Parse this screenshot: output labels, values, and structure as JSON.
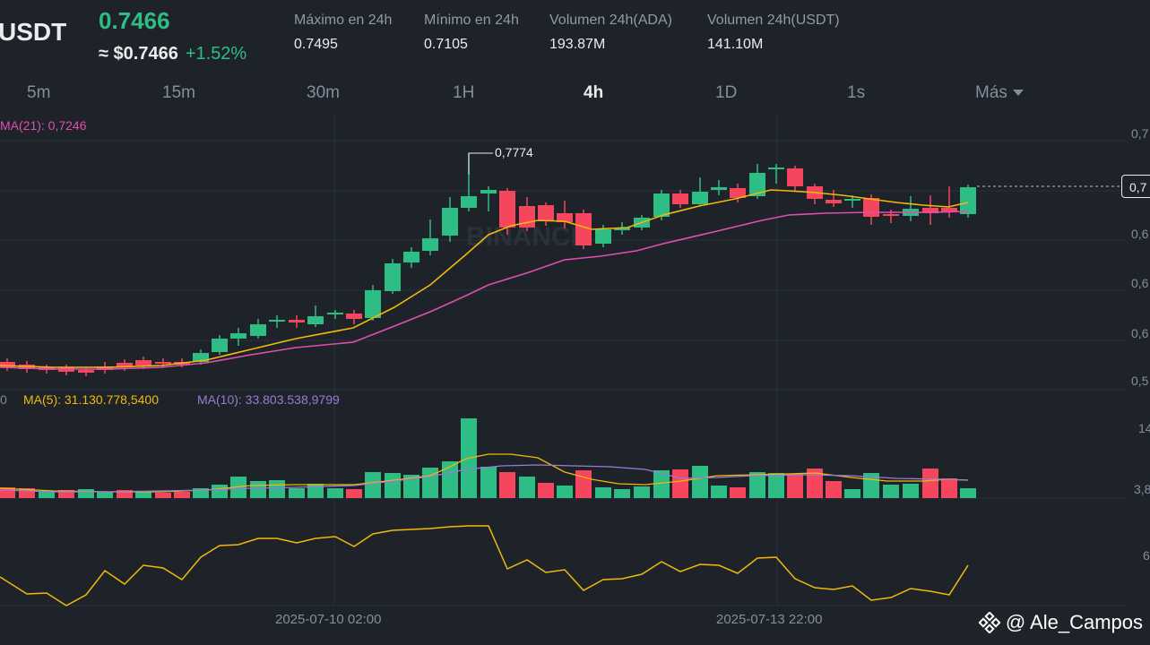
{
  "header": {
    "pair": "USDT",
    "last_price": "0.7466",
    "usd_price": "≈ $0.7466",
    "change": "+1.52%",
    "stats": [
      {
        "label": "Máximo en 24h",
        "value": "0.7495"
      },
      {
        "label": "Mínimo en 24h",
        "value": "0.7105"
      },
      {
        "label": "Volumen 24h(ADA)",
        "value": "193.87M"
      },
      {
        "label": "Volumen 24h(USDT)",
        "value": "141.10M"
      }
    ]
  },
  "timeframes": [
    {
      "label": "5m",
      "active": false
    },
    {
      "label": "15m",
      "active": false
    },
    {
      "label": "30m",
      "active": false
    },
    {
      "label": "1H",
      "active": false
    },
    {
      "label": "4h",
      "active": true
    },
    {
      "label": "1D",
      "active": false
    },
    {
      "label": "1s",
      "active": false
    },
    {
      "label": "Más",
      "active": false
    }
  ],
  "indicators": {
    "price_ma": "MA(21): 0,7246",
    "vol_prefix": "0",
    "vol_ma5": "MA(5): 31.130.778,5400",
    "vol_ma10": "MA(10): 33.803.538,9799"
  },
  "chart": {
    "high_label": "0,7774",
    "current_price_tag": "0,7",
    "price_axis": [
      "0,7",
      "0,6",
      "0,6",
      "0,6",
      "0,5"
    ],
    "volume_axis": [
      "14",
      "3,8"
    ],
    "osc_axis": [
      "6"
    ],
    "dates": [
      "2025-07-10 02:00",
      "2025-07-13 22:00"
    ],
    "watermark": "BINANCE",
    "colors": {
      "up": "#2ebd85",
      "down": "#f6465d",
      "ma_yellow": "#f0b90b",
      "ma_pink": "#e04fb0",
      "ma_purple": "#9b7bd4"
    }
  },
  "footer": {
    "user": "@ Ale_Campos"
  }
}
